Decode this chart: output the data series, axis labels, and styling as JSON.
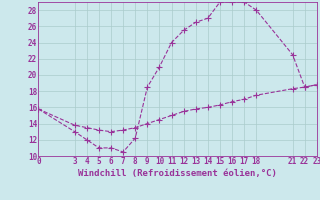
{
  "xlabel": "Windchill (Refroidissement éolien,°C)",
  "background_color": "#cce8ec",
  "line_color": "#993399",
  "grid_color": "#aacccc",
  "xlim": [
    0,
    23
  ],
  "ylim": [
    10,
    29
  ],
  "yticks": [
    10,
    12,
    14,
    16,
    18,
    20,
    22,
    24,
    26,
    28
  ],
  "xticks": [
    0,
    3,
    4,
    5,
    6,
    7,
    8,
    9,
    10,
    11,
    12,
    13,
    14,
    15,
    16,
    17,
    18,
    21,
    22,
    23
  ],
  "curve1_x": [
    0,
    3,
    4,
    5,
    6,
    7,
    8,
    9,
    10,
    11,
    12,
    13,
    14,
    15,
    16,
    17,
    18,
    21,
    22,
    23
  ],
  "curve1_y": [
    15.8,
    13.0,
    12.0,
    11.0,
    11.0,
    10.5,
    12.2,
    18.5,
    21.0,
    24.0,
    25.5,
    26.5,
    27.0,
    29.0,
    29.0,
    29.0,
    28.0,
    22.5,
    18.5,
    18.8
  ],
  "curve2_x": [
    0,
    3,
    4,
    5,
    6,
    7,
    8,
    9,
    10,
    11,
    12,
    13,
    14,
    15,
    16,
    17,
    18,
    21,
    22,
    23
  ],
  "curve2_y": [
    15.8,
    13.8,
    13.5,
    13.2,
    13.0,
    13.2,
    13.5,
    14.0,
    14.5,
    15.0,
    15.5,
    15.8,
    16.0,
    16.3,
    16.7,
    17.0,
    17.5,
    18.3,
    18.5,
    18.8
  ],
  "marker": "+",
  "markersize": 4,
  "linewidth": 0.8,
  "tick_fontsize": 5.5,
  "label_fontsize": 6.5
}
